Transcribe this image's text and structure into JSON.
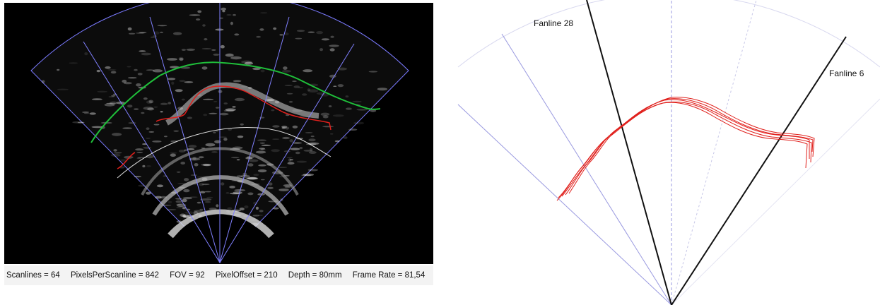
{
  "status_bar": {
    "scanlines": "Scanlines = 64",
    "pixels_per_scanline": "PixelsPerScanline = 842",
    "fov": "FOV = 92",
    "pixel_offset": "PixelOffset = 210",
    "depth": "Depth = 80mm",
    "frame_rate": "Frame Rate = 81,54"
  },
  "right_view": {
    "fanline_left_label": "Fanline 28",
    "fanline_right_label": "Fanline 6"
  },
  "colors": {
    "background": "#000000",
    "grid_line": "#8080ff",
    "boundary_green": "#1fbf3a",
    "tracing_red": "#e0201c",
    "reference_white": "#ffffff",
    "fanline_black": "#111111"
  }
}
